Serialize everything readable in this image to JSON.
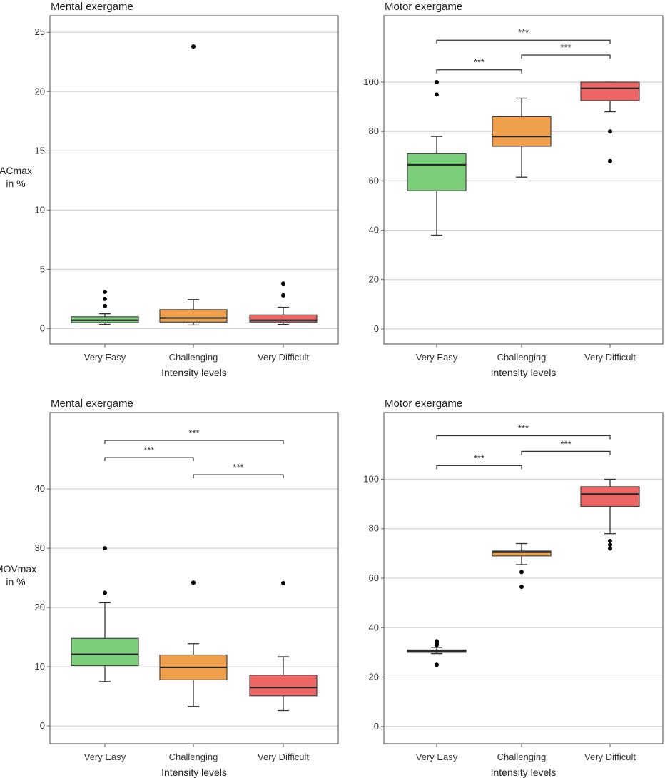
{
  "chart_data": [
    {
      "type": "box",
      "title": "Mental exergame",
      "ylabel": [
        "ACmax",
        "in %"
      ],
      "xlabel": "Intensity levels",
      "categories": [
        "Very Easy",
        "Challenging",
        "Very Difficult"
      ],
      "ylim": [
        -1.3,
        26.4
      ],
      "yticks": [
        0,
        5,
        10,
        15,
        20,
        25
      ],
      "grid": true,
      "boxes": [
        {
          "low": 0.35,
          "q1": 0.5,
          "median": 0.7,
          "q3": 1.0,
          "high": 1.25,
          "outliers": [
            1.9,
            2.5,
            3.1
          ]
        },
        {
          "low": 0.3,
          "q1": 0.55,
          "median": 0.9,
          "q3": 1.6,
          "high": 2.45,
          "outliers": [
            23.8
          ]
        },
        {
          "low": 0.35,
          "q1": 0.55,
          "median": 0.7,
          "q3": 1.15,
          "high": 1.8,
          "outliers": [
            2.8,
            3.8
          ]
        }
      ],
      "significance": []
    },
    {
      "type": "box",
      "title": "Motor exergame",
      "ylabel": [],
      "xlabel": "Intensity levels",
      "categories": [
        "Very Easy",
        "Challenging",
        "Very Difficult"
      ],
      "ylim": [
        -6.1,
        126.9
      ],
      "yticks": [
        0,
        20,
        40,
        60,
        80,
        100
      ],
      "grid": true,
      "boxes": [
        {
          "low": 38,
          "q1": 56,
          "median": 66.5,
          "q3": 71,
          "high": 78,
          "outliers": [
            95,
            100
          ]
        },
        {
          "low": 61.5,
          "q1": 74,
          "median": 78,
          "q3": 86,
          "high": 93.5,
          "outliers": []
        },
        {
          "low": 88,
          "q1": 92.5,
          "median": 97.5,
          "q3": 100,
          "high": 100,
          "outliers": [
            80,
            68
          ]
        }
      ],
      "significance": [
        {
          "from": 0,
          "to": 1,
          "y": 105,
          "label": "***"
        },
        {
          "from": 1,
          "to": 2,
          "y": 111,
          "label": "***"
        },
        {
          "from": 0,
          "to": 2,
          "y": 117,
          "label": "***"
        }
      ]
    },
    {
      "type": "box",
      "title": "Mental exergame",
      "ylabel": [
        "MOVmax",
        "in %"
      ],
      "xlabel": "Intensity levels",
      "categories": [
        "Very Easy",
        "Challenging",
        "Very Difficult"
      ],
      "ylim": [
        -3.0,
        52.9
      ],
      "yticks": [
        0,
        10,
        20,
        30,
        40
      ],
      "grid": true,
      "boxes": [
        {
          "low": 7.5,
          "q1": 10.2,
          "median": 12.1,
          "q3": 14.8,
          "high": 20.8,
          "outliers": [
            22.5,
            30
          ]
        },
        {
          "low": 3.3,
          "q1": 7.8,
          "median": 9.9,
          "q3": 12,
          "high": 13.9,
          "outliers": [
            24.2
          ]
        },
        {
          "low": 2.6,
          "q1": 5.1,
          "median": 6.5,
          "q3": 8.6,
          "high": 11.7,
          "outliers": [
            24.1
          ]
        }
      ],
      "significance": [
        {
          "from": 0,
          "to": 1,
          "y": 45.3,
          "label": "***"
        },
        {
          "from": 1,
          "to": 2,
          "y": 42.4,
          "label": "***"
        },
        {
          "from": 0,
          "to": 2,
          "y": 48.2,
          "label": "***"
        }
      ]
    },
    {
      "type": "box",
      "title": "Motor exergame",
      "ylabel": [],
      "xlabel": "Intensity levels",
      "categories": [
        "Very Easy",
        "Challenging",
        "Very Difficult"
      ],
      "ylim": [
        -7,
        127
      ],
      "yticks": [
        0,
        20,
        40,
        60,
        80,
        100
      ],
      "grid": true,
      "boxes": [
        {
          "low": 29.5,
          "q1": 30,
          "median": 30.5,
          "q3": 31,
          "high": 32,
          "outliers": [
            33,
            33.5,
            34,
            34.5,
            25
          ]
        },
        {
          "low": 65.5,
          "q1": 69,
          "median": 70.5,
          "q3": 71,
          "high": 74,
          "outliers": [
            62.5,
            56.5
          ]
        },
        {
          "low": 78,
          "q1": 89,
          "median": 94,
          "q3": 97,
          "high": 100,
          "outliers": [
            75,
            73.5,
            72
          ]
        }
      ],
      "significance": [
        {
          "from": 0,
          "to": 1,
          "y": 105.5,
          "label": "***"
        },
        {
          "from": 1,
          "to": 2,
          "y": 111.3,
          "label": "***"
        },
        {
          "from": 0,
          "to": 2,
          "y": 117.6,
          "label": "***"
        }
      ]
    }
  ],
  "colors": {
    "Very Easy": "#7ccf7a",
    "Challenging": "#f0a04b",
    "Very Difficult": "#ee6565"
  }
}
